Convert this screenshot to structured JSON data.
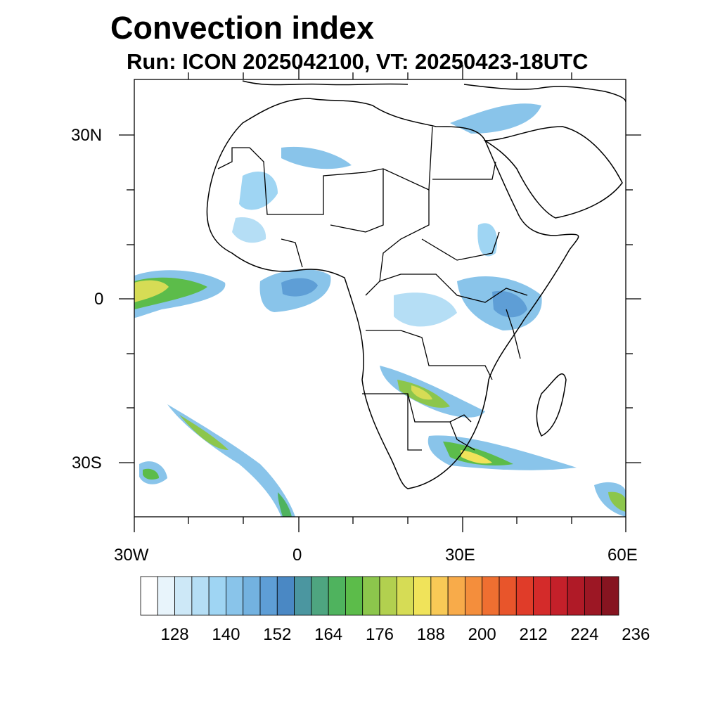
{
  "title": "Convection index",
  "subtitle": "Run: ICON 2025042100,  VT: 20250423-18UTC",
  "lat_labels": [
    "30N",
    "0",
    "30S"
  ],
  "lon_labels": [
    "30W",
    "0",
    "30E",
    "60E"
  ],
  "colorbar": {
    "colors": [
      "#ffffff",
      "#e8f4fb",
      "#cde8f7",
      "#b5def5",
      "#9fd5f3",
      "#89c4ea",
      "#73b2e0",
      "#5e9ed6",
      "#4a88c4",
      "#4b96a0",
      "#4ea580",
      "#4fb35e",
      "#5cbc4a",
      "#8cc64c",
      "#b2d04f",
      "#d6dc55",
      "#f0e35a",
      "#f8c956",
      "#f8ab4a",
      "#f48e3c",
      "#ef6f31",
      "#e8552b",
      "#e03c29",
      "#d42b2a",
      "#c4202a",
      "#b01a27",
      "#9c1724",
      "#861420"
    ],
    "tick_labels": [
      "128",
      "140",
      "152",
      "164",
      "176",
      "188",
      "200",
      "212",
      "224",
      "236"
    ]
  }
}
